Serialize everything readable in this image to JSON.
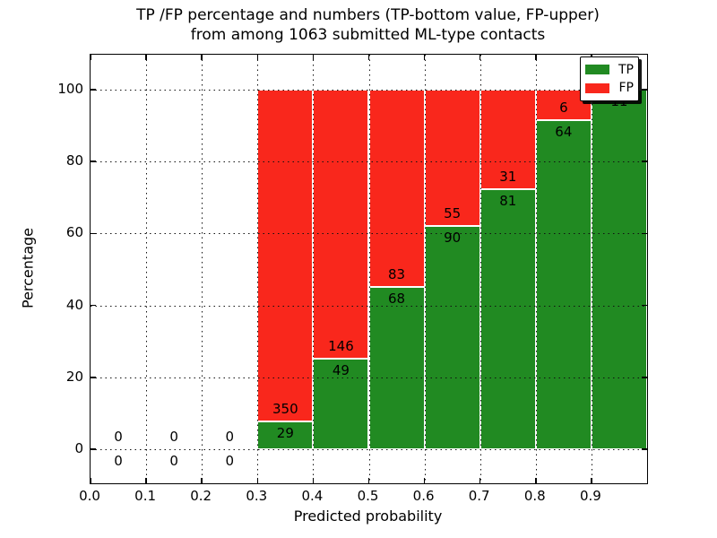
{
  "figure": {
    "title_line1": "TP /FP percentage and numbers (TP-bottom value, FP-upper)",
    "title_line2": "from among 1063 submitted ML-type contacts"
  },
  "chart_data": {
    "type": "bar",
    "stacked": true,
    "title": "TP /FP percentage and numbers (TP-bottom value, FP-upper) from among 1063 submitted ML-type contacts",
    "xlabel": "Predicted probability",
    "ylabel": "Percentage",
    "total_contacts": 1063,
    "xlim": [
      0.0,
      1.0
    ],
    "ylim": [
      -9.5,
      110
    ],
    "x_tick_labels": [
      "0.0",
      "0.1",
      "0.2",
      "0.3",
      "0.4",
      "0.5",
      "0.6",
      "0.7",
      "0.8",
      "0.9"
    ],
    "y_tick_labels": [
      "0",
      "20",
      "40",
      "60",
      "80",
      "100"
    ],
    "grid": "dotted, both axes, drawn above bars",
    "legend_position": "upper right",
    "series": [
      {
        "name": "TP",
        "color": "#218a22"
      },
      {
        "name": "FP",
        "color": "#f9271c"
      }
    ],
    "bins": [
      {
        "x_start": 0.0,
        "x_end": 0.1,
        "tp": 0,
        "fp": 0
      },
      {
        "x_start": 0.1,
        "x_end": 0.2,
        "tp": 0,
        "fp": 0
      },
      {
        "x_start": 0.2,
        "x_end": 0.3,
        "tp": 0,
        "fp": 0
      },
      {
        "x_start": 0.3,
        "x_end": 0.4,
        "tp": 29,
        "fp": 350
      },
      {
        "x_start": 0.4,
        "x_end": 0.5,
        "tp": 49,
        "fp": 146
      },
      {
        "x_start": 0.5,
        "x_end": 0.6,
        "tp": 68,
        "fp": 83
      },
      {
        "x_start": 0.6,
        "x_end": 0.7,
        "tp": 90,
        "fp": 55
      },
      {
        "x_start": 0.7,
        "x_end": 0.8,
        "tp": 81,
        "fp": 31
      },
      {
        "x_start": 0.8,
        "x_end": 0.9,
        "tp": 64,
        "fp": 6
      },
      {
        "x_start": 0.9,
        "x_end": 1.0,
        "tp": 11,
        "fp": 0
      }
    ]
  }
}
